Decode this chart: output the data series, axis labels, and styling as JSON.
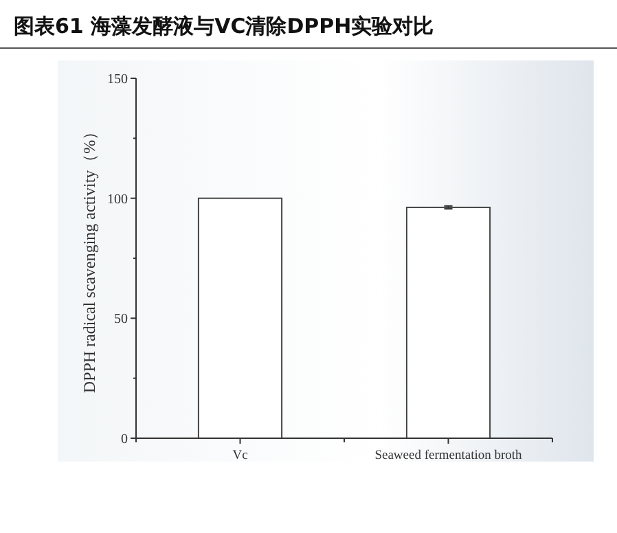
{
  "chart_data": {
    "type": "bar",
    "title": "图表61 海藻发酵液与VC清除DPPH实验对比",
    "ylabel": "DPPH radical scavenging activity（%）",
    "categories": [
      "Vc",
      "Seaweed fermentation broth"
    ],
    "values": [
      100,
      96.2
    ],
    "errors": [
      null,
      0.6
    ],
    "colors": [
      "#ffffff",
      "#ffffff"
    ],
    "ylim": [
      0,
      150
    ],
    "yticks": [
      0,
      {
        "value": 25,
        "label": null
      },
      50,
      {
        "value": 75,
        "label": null
      },
      100,
      {
        "value": 125,
        "label": null
      },
      150
    ],
    "grid": false
  }
}
